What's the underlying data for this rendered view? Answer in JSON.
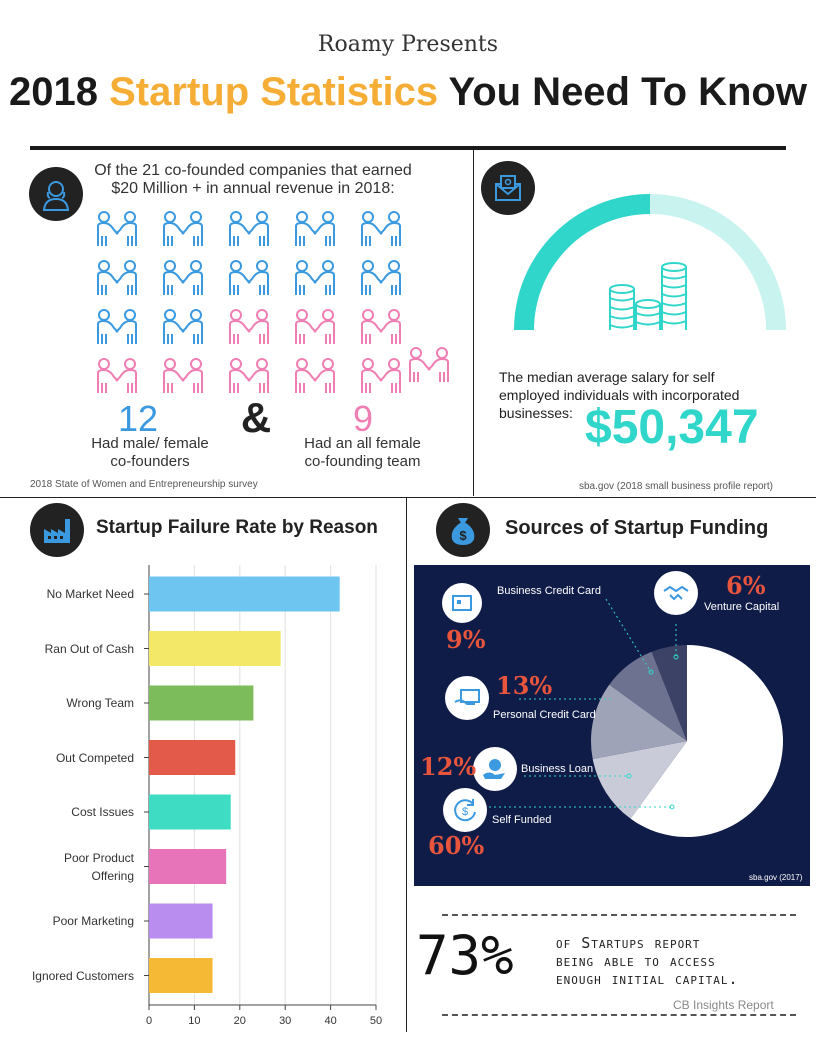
{
  "header": {
    "presents": "Roamy Presents",
    "title_pre": "2018",
    "title_accent": "Startup Statistics",
    "title_post": "You Need To Know"
  },
  "cofounders": {
    "intro_line1": "Of the 21 co-founded companies that earned",
    "intro_line2": "$20 Million + in annual revenue in 2018:",
    "male_female_count": "12",
    "ampersand": "&",
    "female_count": "9",
    "male_female_label_line1": "Had male/ female",
    "male_female_label_line2": "co-founders",
    "female_label_line1": "Had an all female",
    "female_label_line2": "co-founding team",
    "source": "2018 State of Women and Entrepreneurship survey",
    "colors": {
      "mixed": "#3b99e0",
      "female": "#ef7fb2"
    }
  },
  "salary": {
    "text_line1": "The median average salary for self",
    "text_line2": "employed individuals with incorporated",
    "text_line3": "businesses:",
    "value": "$50,347",
    "source": "sba.gov (2018 small business profile report)",
    "gauge_fraction": 0.5,
    "colors": {
      "main": "#2fd6c9",
      "light": "#c9f3ef"
    }
  },
  "failure": {
    "title": "Startup Failure Rate by Reason"
  },
  "funding": {
    "title": "Sources of Startup Funding",
    "items": [
      {
        "label": "Business Credit Card",
        "pct": "9%"
      },
      {
        "label": "Venture Capital",
        "pct": "6%"
      },
      {
        "label": "Personal Credit Card",
        "pct": "13%"
      },
      {
        "label": "Business Loan",
        "pct": "12%"
      },
      {
        "label": "Self  Funded",
        "pct": "60%"
      }
    ],
    "source": "sba.gov (2017)"
  },
  "capital": {
    "percent": "73%",
    "line1": "of Startups report",
    "line2": "being able to access",
    "line3": "enough initial capital.",
    "source": "CB Insights Report"
  },
  "chart_data": [
    {
      "type": "bar",
      "orientation": "horizontal",
      "categories": [
        "No Market Need",
        "Ran Out of Cash",
        "Wrong Team",
        "Out Competed",
        "Cost Issues",
        "Poor Product Offering",
        "Poor Marketing",
        "Ignored Customers"
      ],
      "values": [
        42,
        29,
        23,
        19,
        18,
        17,
        14,
        14
      ],
      "colors": [
        "#6ec6f0",
        "#f3e867",
        "#7cbc5a",
        "#e45a4a",
        "#3fdcc4",
        "#e774b8",
        "#b98cf0",
        "#f6b935"
      ],
      "xlim": [
        0,
        50
      ],
      "xticks": [
        "0",
        "10",
        "20",
        "30",
        "40",
        "50"
      ],
      "grid": true
    },
    {
      "type": "pie",
      "categories": [
        "Self  Funded",
        "Business Loan",
        "Personal Credit Card",
        "Business Credit Card",
        "Venture Capital"
      ],
      "values": [
        60,
        12,
        13,
        9,
        6
      ],
      "colors": [
        "#ffffff",
        "#c9cbd8",
        "#9fa3b8",
        "#6d7290",
        "#3b4266"
      ]
    }
  ]
}
